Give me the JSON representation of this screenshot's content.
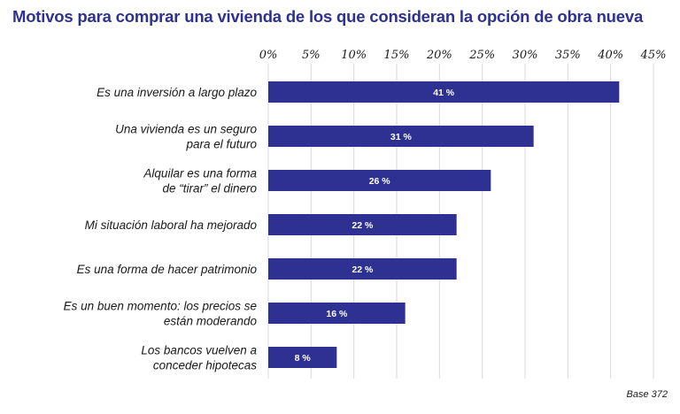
{
  "title": "Motivos para comprar una vivienda de los que consideran la opción de obra nueva",
  "base_note": "Base 372",
  "colors": {
    "bar": "#2e3192",
    "grid": "#d9d9d9",
    "title": "#2e3192"
  },
  "chart_data": {
    "type": "bar",
    "orientation": "horizontal",
    "title": "Motivos para comprar una vivienda de los que consideran la opción de obra nueva",
    "categories": [
      [
        "Es una inversión a largo plazo"
      ],
      [
        "Una vivienda es un seguro",
        "para el futuro"
      ],
      [
        "Alquilar es una forma",
        "de “tirar” el dinero"
      ],
      [
        "Mi situación laboral ha mejorado"
      ],
      [
        "Es una forma de hacer patrimonio"
      ],
      [
        "Es un buen momento: los precios se",
        "están moderando"
      ],
      [
        "Los bancos vuelven a",
        "conceder hipotecas"
      ]
    ],
    "values": [
      41,
      31,
      26,
      22,
      22,
      16,
      8
    ],
    "value_labels": [
      "41 %",
      "31 %",
      "26 %",
      "22 %",
      "22 %",
      "16 %",
      "8 %"
    ],
    "xlim": [
      0,
      45
    ],
    "xticks": [
      0,
      5,
      10,
      15,
      20,
      25,
      30,
      35,
      40,
      45
    ],
    "xtick_labels": [
      "0%",
      "5%",
      "10%",
      "15%",
      "20%",
      "25%",
      "30%",
      "35%",
      "40%",
      "45%"
    ],
    "xaxis_position": "top",
    "grid": true,
    "legend": "none"
  }
}
